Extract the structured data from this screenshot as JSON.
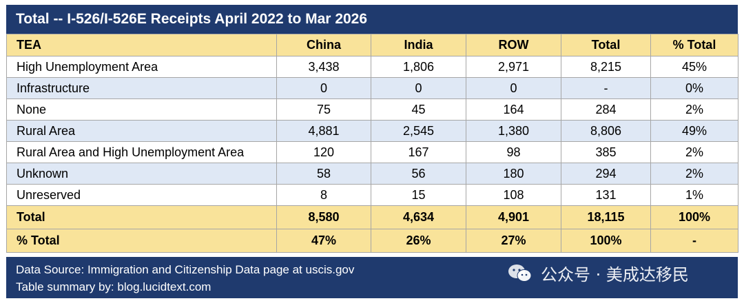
{
  "title": "Total -- I-526/I-526E Receipts April 2022 to Mar 2026",
  "table": {
    "headers": [
      "TEA",
      "China",
      "India",
      "ROW",
      "Total",
      "% Total"
    ],
    "rows": [
      [
        "High Unemployment Area",
        "3,438",
        "1,806",
        "2,971",
        "8,215",
        "45%"
      ],
      [
        "Infrastructure",
        "0",
        "0",
        "0",
        "-",
        "0%"
      ],
      [
        "None",
        "75",
        "45",
        "164",
        "284",
        "2%"
      ],
      [
        "Rural Area",
        "4,881",
        "2,545",
        "1,380",
        "8,806",
        "49%"
      ],
      [
        "Rural Area and High Unemployment Area",
        "120",
        "167",
        "98",
        "385",
        "2%"
      ],
      [
        "Unknown",
        "58",
        "56",
        "180",
        "294",
        "2%"
      ],
      [
        "Unreserved",
        "8",
        "15",
        "108",
        "131",
        "1%"
      ]
    ],
    "totals": [
      [
        "Total",
        "8,580",
        "4,634",
        "4,901",
        "18,115",
        "100%"
      ],
      [
        "% Total",
        "47%",
        "26%",
        "27%",
        "100%",
        "-"
      ]
    ]
  },
  "footer": {
    "source": "Data Source: Immigration and Citizenship Data page at uscis.gov",
    "summary": "Table summary by: blog.lucidtext.com"
  },
  "watermark": {
    "text": "公众号 · 美成达移民",
    "icon": "wechat-icon"
  },
  "colors": {
    "title_bg": "#1f3a6e",
    "header_bg": "#f9e39a",
    "stripe_bg": "#dfe8f5"
  }
}
